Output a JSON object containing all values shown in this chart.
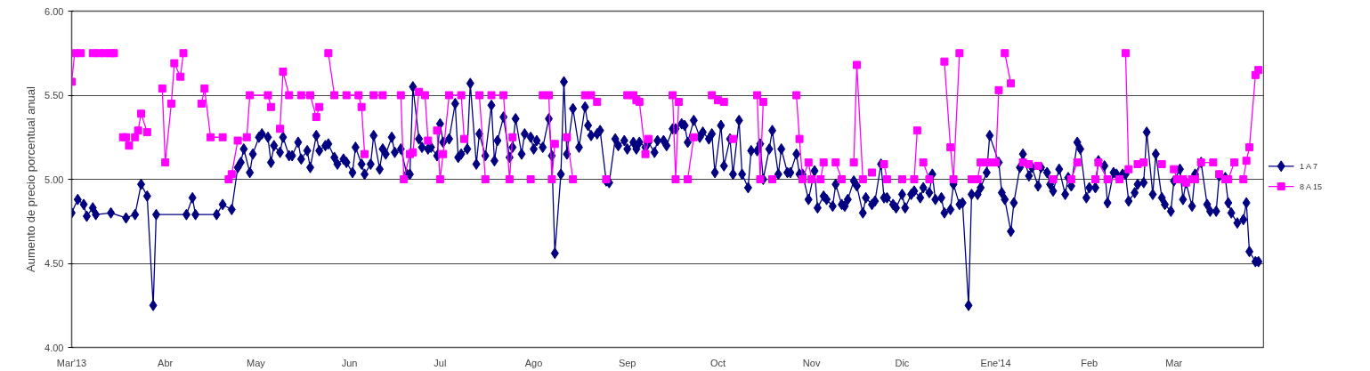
{
  "chart_data": {
    "type": "line",
    "ylabel": "Aumento de precio porcentual anual",
    "xlim": [
      "2013-03-01",
      "2014-03-31"
    ],
    "xticks": [
      {
        "value": "2013-03-01",
        "label": "Mar'13"
      },
      {
        "value": "2013-04-01",
        "label": "Abr"
      },
      {
        "value": "2013-05-01",
        "label": "May"
      },
      {
        "value": "2013-06-01",
        "label": "Jun"
      },
      {
        "value": "2013-07-01",
        "label": "Jul"
      },
      {
        "value": "2013-08-01",
        "label": "Ago"
      },
      {
        "value": "2013-09-01",
        "label": "Sep"
      },
      {
        "value": "2013-10-01",
        "label": "Oct"
      },
      {
        "value": "2013-11-01",
        "label": "Nov"
      },
      {
        "value": "2013-12-01",
        "label": "Dic"
      },
      {
        "value": "2014-01-01",
        "label": "Ene'14"
      },
      {
        "value": "2014-02-01",
        "label": "Feb"
      },
      {
        "value": "2014-03-01",
        "label": "Mar"
      }
    ],
    "ylim": [
      4,
      6
    ],
    "yticks": [
      {
        "value": 4,
        "label": "4.00"
      },
      {
        "value": 4.5,
        "label": "4.50"
      },
      {
        "value": 5,
        "label": "5.00"
      },
      {
        "value": 5.5,
        "label": "5.50"
      },
      {
        "value": 6,
        "label": "6.00"
      }
    ],
    "grid": "y",
    "legend": "right",
    "line_style": "solid",
    "series": [
      {
        "name": "1 A 7",
        "color": "#000080",
        "marker": "diamond",
        "x": [
          "2013-03-01",
          "2013-03-03",
          "2013-03-05",
          "2013-03-06",
          "2013-03-08",
          "2013-03-09",
          "2013-03-14",
          "2013-03-19",
          "2013-03-22",
          "2013-03-24",
          "2013-03-26",
          "2013-03-28",
          "2013-03-29",
          "2013-04-08",
          "2013-04-10",
          "2013-04-11",
          "2013-04-18",
          "2013-04-20",
          "2013-04-23",
          "2013-04-25",
          "2013-04-26",
          "2013-04-27",
          "2013-04-29",
          "2013-04-30",
          "2013-05-02",
          "2013-05-03",
          "2013-05-05",
          "2013-05-06",
          "2013-05-07",
          "2013-05-09",
          "2013-05-10",
          "2013-05-12",
          "2013-05-13",
          "2013-05-15",
          "2013-05-16",
          "2013-05-18",
          "2013-05-19",
          "2013-05-21",
          "2013-05-22",
          "2013-05-24",
          "2013-05-25",
          "2013-05-27",
          "2013-05-28",
          "2013-05-30",
          "2013-05-31",
          "2013-06-02",
          "2013-06-03",
          "2013-06-05",
          "2013-06-06",
          "2013-06-08",
          "2013-06-09",
          "2013-06-11",
          "2013-06-12",
          "2013-06-13",
          "2013-06-15",
          "2013-06-16",
          "2013-06-18",
          "2013-06-20",
          "2013-06-21",
          "2013-06-22",
          "2013-06-24",
          "2013-06-25",
          "2013-06-27",
          "2013-06-28",
          "2013-06-30",
          "2013-07-01",
          "2013-07-02",
          "2013-07-04",
          "2013-07-06",
          "2013-07-07",
          "2013-07-08",
          "2013-07-10",
          "2013-07-11",
          "2013-07-13",
          "2013-07-14",
          "2013-07-16",
          "2013-07-18",
          "2013-07-19",
          "2013-07-20",
          "2013-07-22",
          "2013-07-24",
          "2013-07-25",
          "2013-07-26",
          "2013-07-28",
          "2013-07-29",
          "2013-07-31",
          "2013-08-01",
          "2013-08-02",
          "2013-08-04",
          "2013-08-06",
          "2013-08-07",
          "2013-08-08",
          "2013-08-10",
          "2013-08-11",
          "2013-08-12",
          "2013-08-14",
          "2013-08-16",
          "2013-08-18",
          "2013-08-19",
          "2013-08-20",
          "2013-08-22",
          "2013-08-23",
          "2013-08-25",
          "2013-08-26",
          "2013-08-28",
          "2013-08-29",
          "2013-08-31",
          "2013-09-01",
          "2013-09-03",
          "2013-09-04",
          "2013-09-05",
          "2013-09-07",
          "2013-09-08",
          "2013-09-10",
          "2013-09-11",
          "2013-09-13",
          "2013-09-14",
          "2013-09-16",
          "2013-09-17",
          "2013-09-19",
          "2013-09-20",
          "2013-09-21",
          "2013-09-23",
          "2013-09-25",
          "2013-09-26",
          "2013-09-28",
          "2013-09-29",
          "2013-09-30",
          "2013-10-02",
          "2013-10-03",
          "2013-10-05",
          "2013-10-06",
          "2013-10-08",
          "2013-10-09",
          "2013-10-11",
          "2013-10-12",
          "2013-10-14",
          "2013-10-15",
          "2013-10-16",
          "2013-10-18",
          "2013-10-19",
          "2013-10-21",
          "2013-10-22",
          "2013-10-24",
          "2013-10-25",
          "2013-10-27",
          "2013-10-28",
          "2013-10-29",
          "2013-10-31",
          "2013-11-02",
          "2013-11-03",
          "2013-11-05",
          "2013-11-06",
          "2013-11-08",
          "2013-11-09",
          "2013-11-11",
          "2013-11-12",
          "2013-11-13",
          "2013-11-15",
          "2013-11-16",
          "2013-11-18",
          "2013-11-19",
          "2013-11-21",
          "2013-11-22",
          "2013-11-24",
          "2013-11-25",
          "2013-11-26",
          "2013-11-28",
          "2013-11-29",
          "2013-12-01",
          "2013-12-02",
          "2013-12-04",
          "2013-12-05",
          "2013-12-07",
          "2013-12-08",
          "2013-12-10",
          "2013-12-11",
          "2013-12-12",
          "2013-12-14",
          "2013-12-15",
          "2013-12-17",
          "2013-12-18",
          "2013-12-20",
          "2013-12-21",
          "2013-12-23",
          "2013-12-24",
          "2013-12-26",
          "2013-12-27",
          "2013-12-29",
          "2013-12-30",
          "2014-01-02",
          "2014-01-03",
          "2014-01-04",
          "2014-01-06",
          "2014-01-07",
          "2014-01-09",
          "2014-01-10",
          "2014-01-12",
          "2014-01-13",
          "2014-01-15",
          "2014-01-16",
          "2014-01-18",
          "2014-01-19",
          "2014-01-20",
          "2014-01-22",
          "2014-01-24",
          "2014-01-25",
          "2014-01-26",
          "2014-01-28",
          "2014-01-29",
          "2014-01-31",
          "2014-02-01",
          "2014-02-03",
          "2014-02-04",
          "2014-02-06",
          "2014-02-07",
          "2014-02-09",
          "2014-02-10",
          "2014-02-12",
          "2014-02-13",
          "2014-02-14",
          "2014-02-16",
          "2014-02-17",
          "2014-02-19",
          "2014-02-20",
          "2014-02-22",
          "2014-02-23",
          "2014-02-25",
          "2014-02-26",
          "2014-02-28",
          "2014-03-01",
          "2014-03-03",
          "2014-03-04",
          "2014-03-05",
          "2014-03-07",
          "2014-03-08",
          "2014-03-10",
          "2014-03-12",
          "2014-03-13",
          "2014-03-15",
          "2014-03-16",
          "2014-03-18",
          "2014-03-19",
          "2014-03-20",
          "2014-03-22",
          "2014-03-24",
          "2014-03-25",
          "2014-03-26",
          "2014-03-28",
          "2014-03-29"
        ],
        "values": [
          4.8,
          4.88,
          4.85,
          4.78,
          4.83,
          4.79,
          4.8,
          4.77,
          4.79,
          4.97,
          4.9,
          4.25,
          4.79,
          4.79,
          4.89,
          4.79,
          4.79,
          4.85,
          4.82,
          5.07,
          5.1,
          5.18,
          5.04,
          5.15,
          5.25,
          5.27,
          5.25,
          5.1,
          5.2,
          5.16,
          5.25,
          5.14,
          5.14,
          5.22,
          5.12,
          5.17,
          5.07,
          5.26,
          5.17,
          5.2,
          5.21,
          5.13,
          5.09,
          5.12,
          5.1,
          5.04,
          5.19,
          5.09,
          5.03,
          5.09,
          5.26,
          5.06,
          5.18,
          5.15,
          5.25,
          5.16,
          5.18,
          5.03,
          5.03,
          5.55,
          5.24,
          5.19,
          5.18,
          5.19,
          5.14,
          5.33,
          5.22,
          5.24,
          5.45,
          5.13,
          5.15,
          5.18,
          5.57,
          5.09,
          5.27,
          5.14,
          5.44,
          5.11,
          5.23,
          5.37,
          5.13,
          5.19,
          5.36,
          5.15,
          5.27,
          5.25,
          5.18,
          5.23,
          5.19,
          5.36,
          5.14,
          4.56,
          5.03,
          5.58,
          5.15,
          5.42,
          5.19,
          5.43,
          5.32,
          5.26,
          5.27,
          5.29,
          4.99,
          4.98,
          5.24,
          5.2,
          5.23,
          5.18,
          5.22,
          5.18,
          5.22,
          5.19,
          5.22,
          5.16,
          5.23,
          5.23,
          5.2,
          5.3,
          5.3,
          5.33,
          5.32,
          5.22,
          5.35,
          5.25,
          5.28,
          5.24,
          5.27,
          5.04,
          5.32,
          5.08,
          5.24,
          5.03,
          5.35,
          5.03,
          4.95,
          5.17,
          5.17,
          5.21,
          5.0,
          5.18,
          5.29,
          5.03,
          5.18,
          5.04,
          5.04,
          5.15,
          5.03,
          5.03,
          4.88,
          5.05,
          4.83,
          4.9,
          4.88,
          4.84,
          4.97,
          4.85,
          4.84,
          4.88,
          4.99,
          4.96,
          4.8,
          4.89,
          4.85,
          4.87,
          5.09,
          4.89,
          4.89,
          4.85,
          4.83,
          4.91,
          4.83,
          4.91,
          4.93,
          4.89,
          4.95,
          4.92,
          5.03,
          4.88,
          4.89,
          4.8,
          4.82,
          4.97,
          4.85,
          4.86,
          4.25,
          4.91,
          4.91,
          4.95,
          5.04,
          5.26,
          5.1,
          4.92,
          4.88,
          4.69,
          4.86,
          5.07,
          5.15,
          5.02,
          5.07,
          4.96,
          5.07,
          5.04,
          4.97,
          4.93,
          5.06,
          4.91,
          5.01,
          4.96,
          5.22,
          5.18,
          4.89,
          4.95,
          4.95,
          5.11,
          5.08,
          4.86,
          5.04,
          5.03,
          5.03,
          5.03,
          4.87,
          4.92,
          4.97,
          4.98,
          5.28,
          4.91,
          5.15,
          4.89,
          4.85,
          4.81,
          4.99,
          5.06,
          4.88,
          4.98,
          4.84,
          5.03,
          5.1,
          4.85,
          4.81,
          4.81,
          5.02,
          5.01,
          4.86,
          4.8,
          4.74,
          4.76,
          4.86,
          4.57,
          4.51,
          4.51
        ]
      },
      {
        "name": "8 A 15",
        "color": "#ff00ff",
        "marker": "square",
        "x": [
          "2013-03-01",
          "2013-03-02",
          "2013-03-04",
          "2013-03-06",
          "2013-03-08",
          "2013-03-10",
          "2013-03-12",
          "2013-03-14",
          "2013-03-15",
          "2013-03-17",
          "2013-03-18",
          "2013-03-19",
          "2013-03-20",
          "2013-03-22",
          "2013-03-23",
          "2013-03-24",
          "2013-03-26",
          "2013-03-28",
          "2013-03-31",
          "2013-04-01",
          "2013-04-03",
          "2013-04-04",
          "2013-04-06",
          "2013-04-07",
          "2013-04-10",
          "2013-04-13",
          "2013-04-14",
          "2013-04-16",
          "2013-04-20",
          "2013-04-21",
          "2013-04-22",
          "2013-04-23",
          "2013-04-25",
          "2013-04-28",
          "2013-04-29",
          "2013-05-05",
          "2013-05-06",
          "2013-05-07",
          "2013-05-09",
          "2013-05-10",
          "2013-05-12",
          "2013-05-13",
          "2013-05-16",
          "2013-05-19",
          "2013-05-21",
          "2013-05-22",
          "2013-05-23",
          "2013-05-25",
          "2013-05-27",
          "2013-05-29",
          "2013-05-31",
          "2013-06-04",
          "2013-06-05",
          "2013-06-06",
          "2013-06-08",
          "2013-06-09",
          "2013-06-12",
          "2013-06-13",
          "2013-06-18",
          "2013-06-19",
          "2013-06-21",
          "2013-06-22",
          "2013-06-24",
          "2013-06-26",
          "2013-06-27",
          "2013-06-28",
          "2013-06-30",
          "2013-07-01",
          "2013-07-02",
          "2013-07-04",
          "2013-07-08",
          "2013-07-09",
          "2013-07-12",
          "2013-07-14",
          "2013-07-16",
          "2013-07-17",
          "2013-07-18",
          "2013-07-22",
          "2013-07-24",
          "2013-07-25",
          "2013-07-26",
          "2013-07-31",
          "2013-08-01",
          "2013-08-04",
          "2013-08-06",
          "2013-08-07",
          "2013-08-08",
          "2013-08-09",
          "2013-08-12",
          "2013-08-14",
          "2013-08-15",
          "2013-08-18",
          "2013-08-20",
          "2013-08-22",
          "2013-08-23",
          "2013-08-25",
          "2013-08-26",
          "2013-09-01",
          "2013-09-03",
          "2013-09-04",
          "2013-09-05",
          "2013-09-07",
          "2013-09-08",
          "2013-09-10",
          "2013-09-16",
          "2013-09-17",
          "2013-09-18",
          "2013-09-19",
          "2013-09-21",
          "2013-09-23",
          "2013-09-25",
          "2013-09-29",
          "2013-10-01",
          "2013-10-03",
          "2013-10-04",
          "2013-10-06",
          "2013-10-08",
          "2013-10-14",
          "2013-10-15",
          "2013-10-16",
          "2013-10-17",
          "2013-10-19",
          "2013-10-21",
          "2013-10-27",
          "2013-10-28",
          "2013-10-29",
          "2013-10-31",
          "2013-11-01",
          "2013-11-04",
          "2013-11-05",
          "2013-11-06",
          "2013-11-09",
          "2013-11-11",
          "2013-11-12",
          "2013-11-15",
          "2013-11-16",
          "2013-11-18",
          "2013-11-19",
          "2013-11-21",
          "2013-11-22",
          "2013-11-25",
          "2013-11-26",
          "2013-11-28",
          "2013-12-01",
          "2013-12-05",
          "2013-12-06",
          "2013-12-07",
          "2013-12-08",
          "2013-12-10",
          "2013-12-12",
          "2013-12-15",
          "2013-12-17",
          "2013-12-18",
          "2013-12-20",
          "2013-12-21",
          "2013-12-24",
          "2013-12-26",
          "2013-12-27",
          "2013-12-29",
          "2013-12-30",
          "2014-01-01",
          "2014-01-02",
          "2014-01-03",
          "2014-01-04",
          "2014-01-06",
          "2014-01-08",
          "2014-01-10",
          "2014-01-11",
          "2014-01-12",
          "2014-01-13",
          "2014-01-15",
          "2014-01-17",
          "2014-01-20",
          "2014-01-22",
          "2014-01-26",
          "2014-01-28",
          "2014-01-30",
          "2014-02-03",
          "2014-02-04",
          "2014-02-07",
          "2014-02-11",
          "2014-02-12",
          "2014-02-13",
          "2014-02-14",
          "2014-02-15",
          "2014-02-17",
          "2014-02-19",
          "2014-02-20",
          "2014-02-25",
          "2014-02-27",
          "2014-03-01",
          "2014-03-02",
          "2014-03-04",
          "2014-03-05",
          "2014-03-07",
          "2014-03-08",
          "2014-03-10",
          "2014-03-14",
          "2014-03-15",
          "2014-03-16",
          "2014-03-18",
          "2014-03-19",
          "2014-03-21",
          "2014-03-22",
          "2014-03-24",
          "2014-03-25",
          "2014-03-26",
          "2014-03-28",
          "2014-03-29"
        ],
        "values": [
          5.58,
          5.75,
          5.75,
          null,
          5.75,
          5.75,
          5.75,
          5.75,
          5.75,
          null,
          5.25,
          5.25,
          5.2,
          5.25,
          5.29,
          5.39,
          5.28,
          null,
          5.54,
          5.1,
          5.45,
          5.69,
          5.61,
          5.75,
          null,
          5.45,
          5.54,
          5.25,
          5.25,
          null,
          5.0,
          5.03,
          5.23,
          5.25,
          5.5,
          5.5,
          5.43,
          null,
          5.3,
          5.64,
          5.5,
          null,
          5.5,
          5.5,
          5.37,
          5.43,
          null,
          5.75,
          5.5,
          null,
          5.5,
          5.5,
          5.43,
          5.15,
          null,
          5.5,
          5.5,
          null,
          5.5,
          5.0,
          5.15,
          5.16,
          5.52,
          5.5,
          5.23,
          null,
          5.29,
          5.0,
          5.15,
          5.5,
          5.5,
          5.24,
          null,
          5.5,
          5.0,
          null,
          5.5,
          5.5,
          5.0,
          5.25,
          null,
          5.0,
          null,
          5.5,
          5.5,
          5.0,
          5.21,
          null,
          5.25,
          5.0,
          null,
          5.5,
          5.5,
          5.46,
          null,
          5.0,
          null,
          5.5,
          5.5,
          5.47,
          5.46,
          5.15,
          5.24,
          null,
          5.5,
          5.0,
          5.46,
          null,
          5.0,
          5.25,
          null,
          5.5,
          5.47,
          5.46,
          null,
          5.24,
          null,
          5.5,
          5.0,
          5.46,
          null,
          5.0,
          null,
          5.5,
          5.24,
          5.0,
          5.1,
          5.0,
          5.0,
          5.1,
          null,
          5.1,
          5.0,
          null,
          5.1,
          5.68,
          5.0,
          null,
          5.04,
          null,
          5.09,
          5.0,
          null,
          5.0,
          5.0,
          5.29,
          null,
          5.1,
          5.0,
          null,
          5.7,
          5.19,
          5.0,
          5.75,
          null,
          5.0,
          5.0,
          5.1,
          5.1,
          5.1,
          5.1,
          5.53,
          null,
          5.75,
          5.57,
          null,
          5.1,
          null,
          5.09,
          null,
          5.08,
          null,
          5.0,
          null,
          5.0,
          5.1,
          null,
          5.0,
          5.1,
          5.0,
          5.0,
          null,
          5.75,
          5.06,
          null,
          5.09,
          5.1,
          null,
          5.09,
          null,
          5.06,
          5.0,
          5.0,
          4.98,
          5.0,
          5.0,
          5.1,
          5.1,
          null,
          5.03,
          5.0,
          5.0,
          5.1,
          null,
          5.0,
          5.11,
          5.19,
          5.62,
          5.65
        ]
      }
    ]
  }
}
